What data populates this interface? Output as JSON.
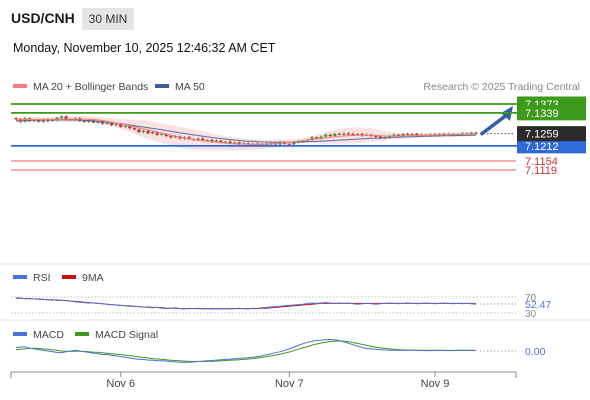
{
  "header": {
    "symbol": "USD/CNH",
    "timeframe": "30 MIN",
    "datetime": "Monday, November 10, 2025 12:46:32 AM CET"
  },
  "legend": {
    "ma20_label": "MA 20 + Bollinger Bands",
    "ma50_label": "MA 50",
    "ma20_color": "#f47c7c",
    "ma50_color": "#3b5b9a",
    "credit": "Research © 2025 Trading Central"
  },
  "levels": [
    {
      "value": 7.1373,
      "label": "7.1373",
      "kind": "resistance",
      "color": "#3d9a1a"
    },
    {
      "value": 7.1339,
      "label": "7.1339",
      "kind": "resistance",
      "color": "#3d9a1a"
    },
    {
      "value": 7.1212,
      "label": "7.1212",
      "kind": "pivot",
      "color": "#2f6bd8"
    },
    {
      "value": 7.1154,
      "label": "7.1154",
      "kind": "support",
      "color": "#e06060"
    },
    {
      "value": 7.1119,
      "label": "7.1119",
      "kind": "support",
      "color": "#e06060"
    }
  ],
  "last_price": {
    "value": 7.1259,
    "label": "7.1259"
  },
  "chart_data": {
    "type": "candlestick",
    "ylim": [
      7.108,
      7.1445
    ],
    "x_ticks": [
      {
        "label": "Nov 6",
        "index": 23
      },
      {
        "label": "Nov 7",
        "index": 60
      },
      {
        "label": "Nov 9",
        "index": 92
      }
    ],
    "close": [
      7.1315,
      7.1305,
      7.1318,
      7.1308,
      7.1312,
      7.1305,
      7.1315,
      7.1308,
      7.1312,
      7.132,
      7.1325,
      7.1312,
      7.1315,
      7.1318,
      7.1308,
      7.1305,
      7.131,
      7.1302,
      7.1305,
      7.1298,
      7.13,
      7.1292,
      7.1295,
      7.1285,
      7.1288,
      7.128,
      7.1275,
      7.1265,
      7.127,
      7.126,
      7.1265,
      7.1255,
      7.1258,
      7.125,
      7.1245,
      7.1248,
      7.124,
      7.1245,
      7.1238,
      7.1235,
      7.124,
      7.1232,
      7.1235,
      7.1228,
      7.1232,
      7.1225,
      7.1228,
      7.1222,
      7.1225,
      7.122,
      7.1222,
      7.1218,
      7.122,
      7.1215,
      7.122,
      7.1218,
      7.1222,
      7.1218,
      7.1225,
      7.122,
      7.1218,
      7.1225,
      7.1228,
      7.1232,
      7.1235,
      7.1245,
      7.124,
      7.1248,
      7.1255,
      7.125,
      7.1258,
      7.1255,
      7.126,
      7.1258,
      7.1255,
      7.1258,
      7.1252,
      7.1255,
      7.125,
      7.1248,
      7.1242,
      7.1245,
      7.125,
      7.1255,
      7.1252,
      7.1258,
      7.1255,
      7.1258,
      7.1252,
      7.1255,
      7.1252,
      7.1256,
      7.1254,
      7.1258,
      7.1255,
      7.1258,
      7.1254,
      7.1256,
      7.126,
      7.1258,
      7.1262,
      7.1259
    ],
    "ma20": [
      7.1312,
      7.1312,
      7.1313,
      7.1313,
      7.1313,
      7.1313,
      7.1313,
      7.1313,
      7.1314,
      7.1314,
      7.1315,
      7.1315,
      7.1315,
      7.1315,
      7.1315,
      7.1315,
      7.1314,
      7.1313,
      7.1311,
      7.1309,
      7.1306,
      7.1303,
      7.13,
      7.1296,
      7.1293,
      7.1289,
      7.1285,
      7.1281,
      7.1277,
      7.1273,
      7.1269,
      7.1264,
      7.1261,
      7.1257,
      7.1253,
      7.1249,
      7.1245,
      7.1242,
      7.1239,
      7.1236,
      7.1234,
      7.1232,
      7.123,
      7.1228,
      7.1226,
      7.1224,
      7.1223,
      7.1221,
      7.122,
      7.1219,
      7.1219,
      7.1218,
      7.1218,
      7.1218,
      7.1218,
      7.1219,
      7.122,
      7.1221,
      7.1223,
      7.1225,
      7.1226,
      7.1228,
      7.123,
      7.1232,
      7.1234,
      7.1237,
      7.1239,
      7.1241,
      7.1243,
      7.1245,
      7.1247,
      7.1248,
      7.125,
      7.1251,
      7.1252,
      7.1253,
      7.1253,
      7.1253,
      7.1253,
      7.1252,
      7.1251,
      7.125,
      7.125,
      7.125,
      7.125,
      7.125,
      7.1251,
      7.1251,
      7.1252,
      7.1252,
      7.1253,
      7.1253,
      7.1254,
      7.1254,
      7.1255,
      7.1255,
      7.1256,
      7.1256,
      7.1256,
      7.1257,
      7.1257,
      7.1258
    ],
    "ma50": [
      7.1308,
      7.1309,
      7.131,
      7.131,
      7.1311,
      7.1311,
      7.1312,
      7.1312,
      7.1312,
      7.1312,
      7.1312,
      7.1312,
      7.1312,
      7.1311,
      7.1311,
      7.131,
      7.1309,
      7.1308,
      7.1306,
      7.1305,
      7.1303,
      7.1301,
      7.1299,
      7.1297,
      7.1295,
      7.1292,
      7.129,
      7.1287,
      7.1285,
      7.1282,
      7.1279,
      7.1277,
      7.1274,
      7.1271,
      7.1268,
      7.1265,
      7.1262,
      7.126,
      7.1257,
      7.1254,
      7.1252,
      7.1249,
      7.1247,
      7.1244,
      7.1242,
      7.124,
      7.1238,
      7.1236,
      7.1234,
      7.1233,
      7.1231,
      7.123,
      7.1229,
      7.1228,
      7.1227,
      7.1227,
      7.1226,
      7.1226,
      7.1226,
      7.1226,
      7.1226,
      7.1226,
      7.1227,
      7.1227,
      7.1228,
      7.1229,
      7.1229,
      7.123,
      7.1231,
      7.1232,
      7.1233,
      7.1234,
      7.1235,
      7.1236,
      7.1237,
      7.1238,
      7.1239,
      7.124,
      7.1241,
      7.1241,
      7.1242,
      7.1243,
      7.1244,
      7.1245,
      7.1245,
      7.1246,
      7.1247,
      7.1247,
      7.1248,
      7.1248,
      7.1249,
      7.1249,
      7.125,
      7.125,
      7.1251,
      7.1251,
      7.1251,
      7.1252,
      7.1252,
      7.1252,
      7.1253,
      7.1253
    ],
    "projection": {
      "from": 7.1259,
      "to": 7.1373
    }
  },
  "rsi": {
    "label": "RSI",
    "ma_label": "9MA",
    "value_label": "52.47",
    "level_70": "70",
    "level_30": "30",
    "color": "#4a72d8",
    "ma_color": "#d01010",
    "values": [
      68,
      67,
      66,
      66,
      65,
      64,
      64,
      63,
      62,
      63,
      62,
      61,
      60,
      58,
      57,
      56,
      55,
      55,
      54,
      53,
      52,
      51,
      50,
      49,
      48,
      47,
      47,
      46,
      45,
      44,
      43,
      44,
      42,
      41,
      42,
      43,
      41,
      40,
      42,
      41,
      42,
      40,
      41,
      40,
      41,
      40,
      41,
      40,
      41,
      42,
      41,
      40,
      42,
      41,
      43,
      44,
      45,
      46,
      47,
      48,
      49,
      50,
      51,
      52,
      54,
      55,
      54,
      55,
      56,
      55,
      54,
      55,
      54,
      55,
      53,
      52,
      53,
      54,
      53,
      52,
      53,
      54,
      55,
      54,
      53,
      54,
      55,
      54,
      53,
      54,
      55,
      54,
      53,
      54,
      55,
      54,
      53,
      54,
      53,
      54,
      53,
      52
    ],
    "ma": [
      67,
      67,
      66,
      66,
      65,
      65,
      64,
      63,
      63,
      62,
      62,
      61,
      60,
      59,
      58,
      57,
      56,
      55,
      54,
      53,
      52,
      51,
      50,
      49,
      48,
      48,
      47,
      46,
      45,
      45,
      44,
      44,
      43,
      42,
      42,
      42,
      41,
      41,
      41,
      41,
      41,
      41,
      41,
      41,
      41,
      41,
      41,
      41,
      41,
      41,
      41,
      41,
      41,
      41,
      42,
      42,
      43,
      44,
      45,
      46,
      47,
      48,
      49,
      50,
      51,
      52,
      53,
      54,
      54,
      54,
      54,
      54,
      54,
      54,
      54,
      54,
      54,
      54,
      54,
      54,
      54,
      54,
      54,
      54,
      54,
      54,
      54,
      54,
      54,
      54,
      54,
      54,
      54,
      54,
      54,
      54,
      54,
      54,
      54,
      54,
      54,
      53
    ]
  },
  "macd": {
    "label": "MACD",
    "signal_label": "MACD Signal",
    "value_label": "0.00",
    "color": "#4a72d8",
    "signal_color": "#3d9a1a",
    "macd": [
      0.25,
      0.28,
      0.3,
      0.2,
      0.15,
      0.1,
      0.05,
      0.0,
      -0.05,
      -0.1,
      -0.12,
      -0.05,
      0.0,
      0.05,
      0.0,
      -0.05,
      -0.1,
      -0.15,
      -0.2,
      -0.25,
      -0.25,
      -0.3,
      -0.35,
      -0.4,
      -0.45,
      -0.5,
      -0.55,
      -0.6,
      -0.6,
      -0.65,
      -0.65,
      -0.7,
      -0.7,
      -0.72,
      -0.75,
      -0.78,
      -0.8,
      -0.8,
      -0.8,
      -0.78,
      -0.75,
      -0.72,
      -0.7,
      -0.68,
      -0.65,
      -0.62,
      -0.6,
      -0.58,
      -0.55,
      -0.52,
      -0.5,
      -0.48,
      -0.45,
      -0.4,
      -0.35,
      -0.28,
      -0.2,
      -0.12,
      -0.05,
      0.05,
      0.15,
      0.28,
      0.4,
      0.52,
      0.62,
      0.7,
      0.75,
      0.78,
      0.8,
      0.82,
      0.8,
      0.75,
      0.65,
      0.55,
      0.45,
      0.35,
      0.25,
      0.18,
      0.15,
      0.12,
      0.1,
      0.08,
      0.06,
      0.05,
      0.05,
      0.04,
      0.04,
      0.05,
      0.05,
      0.04,
      0.03,
      0.03,
      0.04,
      0.05,
      0.04,
      0.03,
      0.03,
      0.05,
      0.06,
      0.05,
      0.04,
      0.03
    ],
    "signal": [
      0.1,
      0.12,
      0.15,
      0.18,
      0.2,
      0.18,
      0.15,
      0.12,
      0.08,
      0.04,
      0.0,
      -0.02,
      -0.03,
      -0.02,
      -0.02,
      -0.03,
      -0.05,
      -0.08,
      -0.1,
      -0.13,
      -0.16,
      -0.19,
      -0.22,
      -0.26,
      -0.3,
      -0.34,
      -0.38,
      -0.42,
      -0.46,
      -0.5,
      -0.54,
      -0.57,
      -0.6,
      -0.63,
      -0.66,
      -0.68,
      -0.7,
      -0.72,
      -0.74,
      -0.75,
      -0.75,
      -0.75,
      -0.74,
      -0.73,
      -0.72,
      -0.7,
      -0.68,
      -0.66,
      -0.64,
      -0.62,
      -0.6,
      -0.57,
      -0.54,
      -0.5,
      -0.46,
      -0.41,
      -0.35,
      -0.29,
      -0.22,
      -0.15,
      -0.07,
      0.02,
      0.12,
      0.22,
      0.32,
      0.42,
      0.5,
      0.57,
      0.63,
      0.68,
      0.71,
      0.72,
      0.7,
      0.66,
      0.6,
      0.54,
      0.47,
      0.4,
      0.34,
      0.28,
      0.23,
      0.19,
      0.15,
      0.12,
      0.1,
      0.08,
      0.07,
      0.06,
      0.06,
      0.05,
      0.05,
      0.05,
      0.04,
      0.04,
      0.04,
      0.04,
      0.04,
      0.04,
      0.04,
      0.04,
      0.04,
      0.04
    ]
  }
}
